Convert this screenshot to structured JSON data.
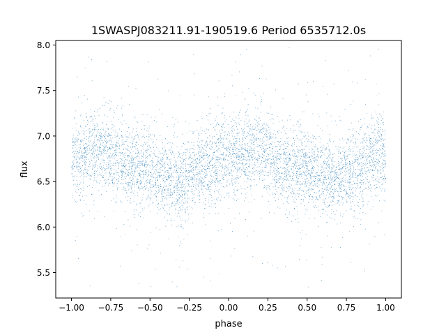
{
  "chart_data": {
    "type": "scatter",
    "title": "1SWASPJ083211.91-190519.6 Period 6535712.0s",
    "xlabel": "phase",
    "ylabel": "flux",
    "xlim": [
      -1.1,
      1.1
    ],
    "ylim": [
      5.22,
      8.05
    ],
    "x_ticks": [
      -1.0,
      -0.75,
      -0.5,
      -0.25,
      0.0,
      0.25,
      0.5,
      0.75,
      1.0
    ],
    "x_tick_labels": [
      "−1.00",
      "−0.75",
      "−0.50",
      "−0.25",
      "0.00",
      "0.25",
      "0.50",
      "0.75",
      "1.00"
    ],
    "y_ticks": [
      5.5,
      6.0,
      6.5,
      7.0,
      7.5,
      8.0
    ],
    "y_tick_labels": [
      "5.5",
      "6.0",
      "6.5",
      "7.0",
      "7.5",
      "8.0"
    ],
    "grid": false,
    "legend": "none",
    "marker_color": "#1f77b4",
    "series": [
      {
        "phase_profile": [
          [
            -1.0,
            6.8
          ],
          [
            -0.95,
            6.75
          ],
          [
            -0.9,
            6.8
          ],
          [
            -0.85,
            6.82
          ],
          [
            -0.8,
            6.85
          ],
          [
            -0.75,
            6.8
          ],
          [
            -0.7,
            6.72
          ],
          [
            -0.65,
            6.68
          ],
          [
            -0.6,
            6.66
          ],
          [
            -0.55,
            6.65
          ],
          [
            -0.5,
            6.63
          ],
          [
            -0.45,
            6.6
          ],
          [
            -0.4,
            6.55
          ],
          [
            -0.35,
            6.52
          ],
          [
            -0.3,
            6.5
          ],
          [
            -0.25,
            6.55
          ],
          [
            -0.2,
            6.62
          ],
          [
            -0.15,
            6.68
          ],
          [
            -0.1,
            6.72
          ],
          [
            -0.05,
            6.78
          ],
          [
            0.0,
            6.8
          ],
          [
            0.05,
            6.78
          ],
          [
            0.1,
            6.8
          ],
          [
            0.15,
            6.82
          ],
          [
            0.2,
            6.85
          ],
          [
            0.25,
            6.8
          ],
          [
            0.3,
            6.72
          ],
          [
            0.35,
            6.68
          ],
          [
            0.4,
            6.66
          ],
          [
            0.45,
            6.65
          ],
          [
            0.5,
            6.63
          ],
          [
            0.55,
            6.6
          ],
          [
            0.6,
            6.55
          ],
          [
            0.65,
            6.52
          ],
          [
            0.7,
            6.5
          ],
          [
            0.75,
            6.55
          ],
          [
            0.8,
            6.62
          ],
          [
            0.85,
            6.68
          ],
          [
            0.9,
            6.72
          ],
          [
            0.95,
            6.78
          ],
          [
            1.0,
            6.8
          ]
        ],
        "typical_scatter": 0.22,
        "flux_range": [
          5.33,
          7.98
        ]
      }
    ]
  }
}
